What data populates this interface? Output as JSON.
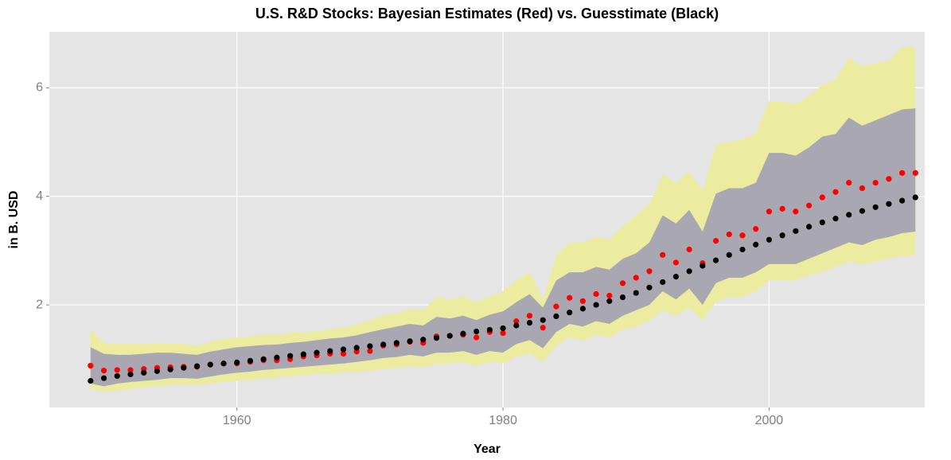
{
  "chart_data": {
    "type": "scatter",
    "title": "U.S. R&D Stocks: Bayesian Estimates (Red) vs. Guesstimate (Black)",
    "x_label": "Year",
    "y_label": "in B. USD",
    "xlim": [
      1945.9,
      2011.7
    ],
    "ylim": [
      0.11,
      7.03
    ],
    "xticks": [
      1960,
      1980,
      2000
    ],
    "yticks": [
      2,
      4,
      6
    ],
    "grid": true,
    "x": [
      1949,
      1950,
      1951,
      1952,
      1953,
      1954,
      1955,
      1956,
      1957,
      1958,
      1959,
      1960,
      1961,
      1962,
      1963,
      1964,
      1965,
      1966,
      1967,
      1968,
      1969,
      1970,
      1971,
      1972,
      1973,
      1974,
      1975,
      1976,
      1977,
      1978,
      1979,
      1980,
      1981,
      1982,
      1983,
      1984,
      1985,
      1986,
      1987,
      1988,
      1989,
      1990,
      1991,
      1992,
      1993,
      1994,
      1995,
      1996,
      1997,
      1998,
      1999,
      2000,
      2001,
      2002,
      2003,
      2004,
      2005,
      2006,
      2007,
      2008,
      2009,
      2010,
      2011
    ],
    "bands": [
      {
        "color": "#ececa0",
        "upper": [
          1.55,
          1.3,
          1.28,
          1.28,
          1.28,
          1.3,
          1.3,
          1.28,
          1.25,
          1.32,
          1.38,
          1.4,
          1.42,
          1.45,
          1.45,
          1.48,
          1.5,
          1.52,
          1.55,
          1.58,
          1.65,
          1.72,
          1.8,
          1.85,
          1.92,
          1.9,
          2.15,
          2.1,
          2.15,
          2.05,
          2.15,
          2.25,
          2.45,
          2.6,
          2.1,
          2.9,
          3.15,
          3.15,
          3.25,
          3.2,
          3.45,
          3.65,
          3.85,
          4.4,
          4.25,
          4.45,
          4.1,
          4.95,
          5.0,
          5.05,
          5.15,
          5.75,
          5.75,
          5.7,
          5.85,
          6.05,
          6.15,
          6.55,
          6.4,
          6.45,
          6.5,
          6.75,
          6.75
        ],
        "lower": [
          0.45,
          0.4,
          0.42,
          0.45,
          0.48,
          0.5,
          0.52,
          0.52,
          0.52,
          0.55,
          0.58,
          0.6,
          0.62,
          0.64,
          0.66,
          0.68,
          0.7,
          0.72,
          0.73,
          0.75,
          0.77,
          0.78,
          0.82,
          0.84,
          0.87,
          0.85,
          0.92,
          0.92,
          0.94,
          0.88,
          0.95,
          0.92,
          1.05,
          1.1,
          0.95,
          1.25,
          1.4,
          1.35,
          1.45,
          1.4,
          1.55,
          1.6,
          1.7,
          1.9,
          1.8,
          1.95,
          1.72,
          2.05,
          2.15,
          2.15,
          2.25,
          2.45,
          2.45,
          2.45,
          2.55,
          2.6,
          2.7,
          2.8,
          2.75,
          2.8,
          2.85,
          2.9,
          2.92
        ]
      },
      {
        "color": "#a9a8b2",
        "upper": [
          1.22,
          1.1,
          1.08,
          1.08,
          1.1,
          1.12,
          1.12,
          1.1,
          1.08,
          1.14,
          1.18,
          1.22,
          1.24,
          1.26,
          1.27,
          1.3,
          1.32,
          1.35,
          1.38,
          1.4,
          1.44,
          1.5,
          1.55,
          1.6,
          1.65,
          1.62,
          1.78,
          1.75,
          1.8,
          1.72,
          1.82,
          1.88,
          2.05,
          2.2,
          1.95,
          2.45,
          2.6,
          2.6,
          2.7,
          2.65,
          2.85,
          2.95,
          3.15,
          3.65,
          3.5,
          3.75,
          3.35,
          4.05,
          4.15,
          4.15,
          4.25,
          4.8,
          4.8,
          4.75,
          4.9,
          5.1,
          5.15,
          5.45,
          5.3,
          5.4,
          5.5,
          5.6,
          5.62
        ],
        "lower": [
          0.55,
          0.5,
          0.55,
          0.58,
          0.6,
          0.62,
          0.65,
          0.65,
          0.64,
          0.68,
          0.72,
          0.75,
          0.77,
          0.8,
          0.82,
          0.84,
          0.86,
          0.88,
          0.9,
          0.92,
          0.95,
          0.98,
          1.02,
          1.04,
          1.08,
          1.05,
          1.12,
          1.12,
          1.15,
          1.08,
          1.15,
          1.12,
          1.28,
          1.35,
          1.2,
          1.5,
          1.65,
          1.6,
          1.7,
          1.65,
          1.8,
          1.9,
          2.0,
          2.25,
          2.1,
          2.3,
          2.0,
          2.4,
          2.5,
          2.5,
          2.6,
          2.75,
          2.75,
          2.75,
          2.85,
          2.95,
          3.05,
          3.15,
          3.1,
          3.2,
          3.25,
          3.32,
          3.35
        ]
      }
    ],
    "series": [
      {
        "color": "#ff0000",
        "values": [
          0.88,
          0.79,
          0.8,
          0.8,
          0.82,
          0.84,
          0.85,
          0.86,
          0.86,
          0.9,
          0.92,
          0.92,
          0.95,
          0.98,
          0.98,
          1.0,
          1.05,
          1.07,
          1.1,
          1.1,
          1.14,
          1.15,
          1.25,
          1.27,
          1.32,
          1.3,
          1.42,
          1.43,
          1.45,
          1.4,
          1.5,
          1.48,
          1.7,
          1.8,
          1.58,
          1.97,
          2.13,
          2.07,
          2.2,
          2.17,
          2.4,
          2.5,
          2.62,
          2.92,
          2.78,
          3.02,
          2.77,
          3.18,
          3.3,
          3.28,
          3.4,
          3.72,
          3.77,
          3.72,
          3.83,
          3.98,
          4.08,
          4.25,
          4.15,
          4.25,
          4.32,
          4.43,
          4.43
        ]
      },
      {
        "color": "#000000",
        "values": [
          0.6,
          0.65,
          0.69,
          0.72,
          0.75,
          0.78,
          0.81,
          0.84,
          0.87,
          0.9,
          0.92,
          0.94,
          0.97,
          1.0,
          1.03,
          1.06,
          1.09,
          1.12,
          1.15,
          1.18,
          1.21,
          1.24,
          1.27,
          1.3,
          1.33,
          1.36,
          1.39,
          1.43,
          1.47,
          1.51,
          1.54,
          1.57,
          1.62,
          1.67,
          1.72,
          1.79,
          1.86,
          1.93,
          2.0,
          2.07,
          2.14,
          2.22,
          2.32,
          2.42,
          2.52,
          2.62,
          2.72,
          2.82,
          2.92,
          3.02,
          3.11,
          3.2,
          3.28,
          3.36,
          3.44,
          3.52,
          3.59,
          3.66,
          3.73,
          3.8,
          3.86,
          3.92,
          3.98
        ]
      }
    ]
  }
}
